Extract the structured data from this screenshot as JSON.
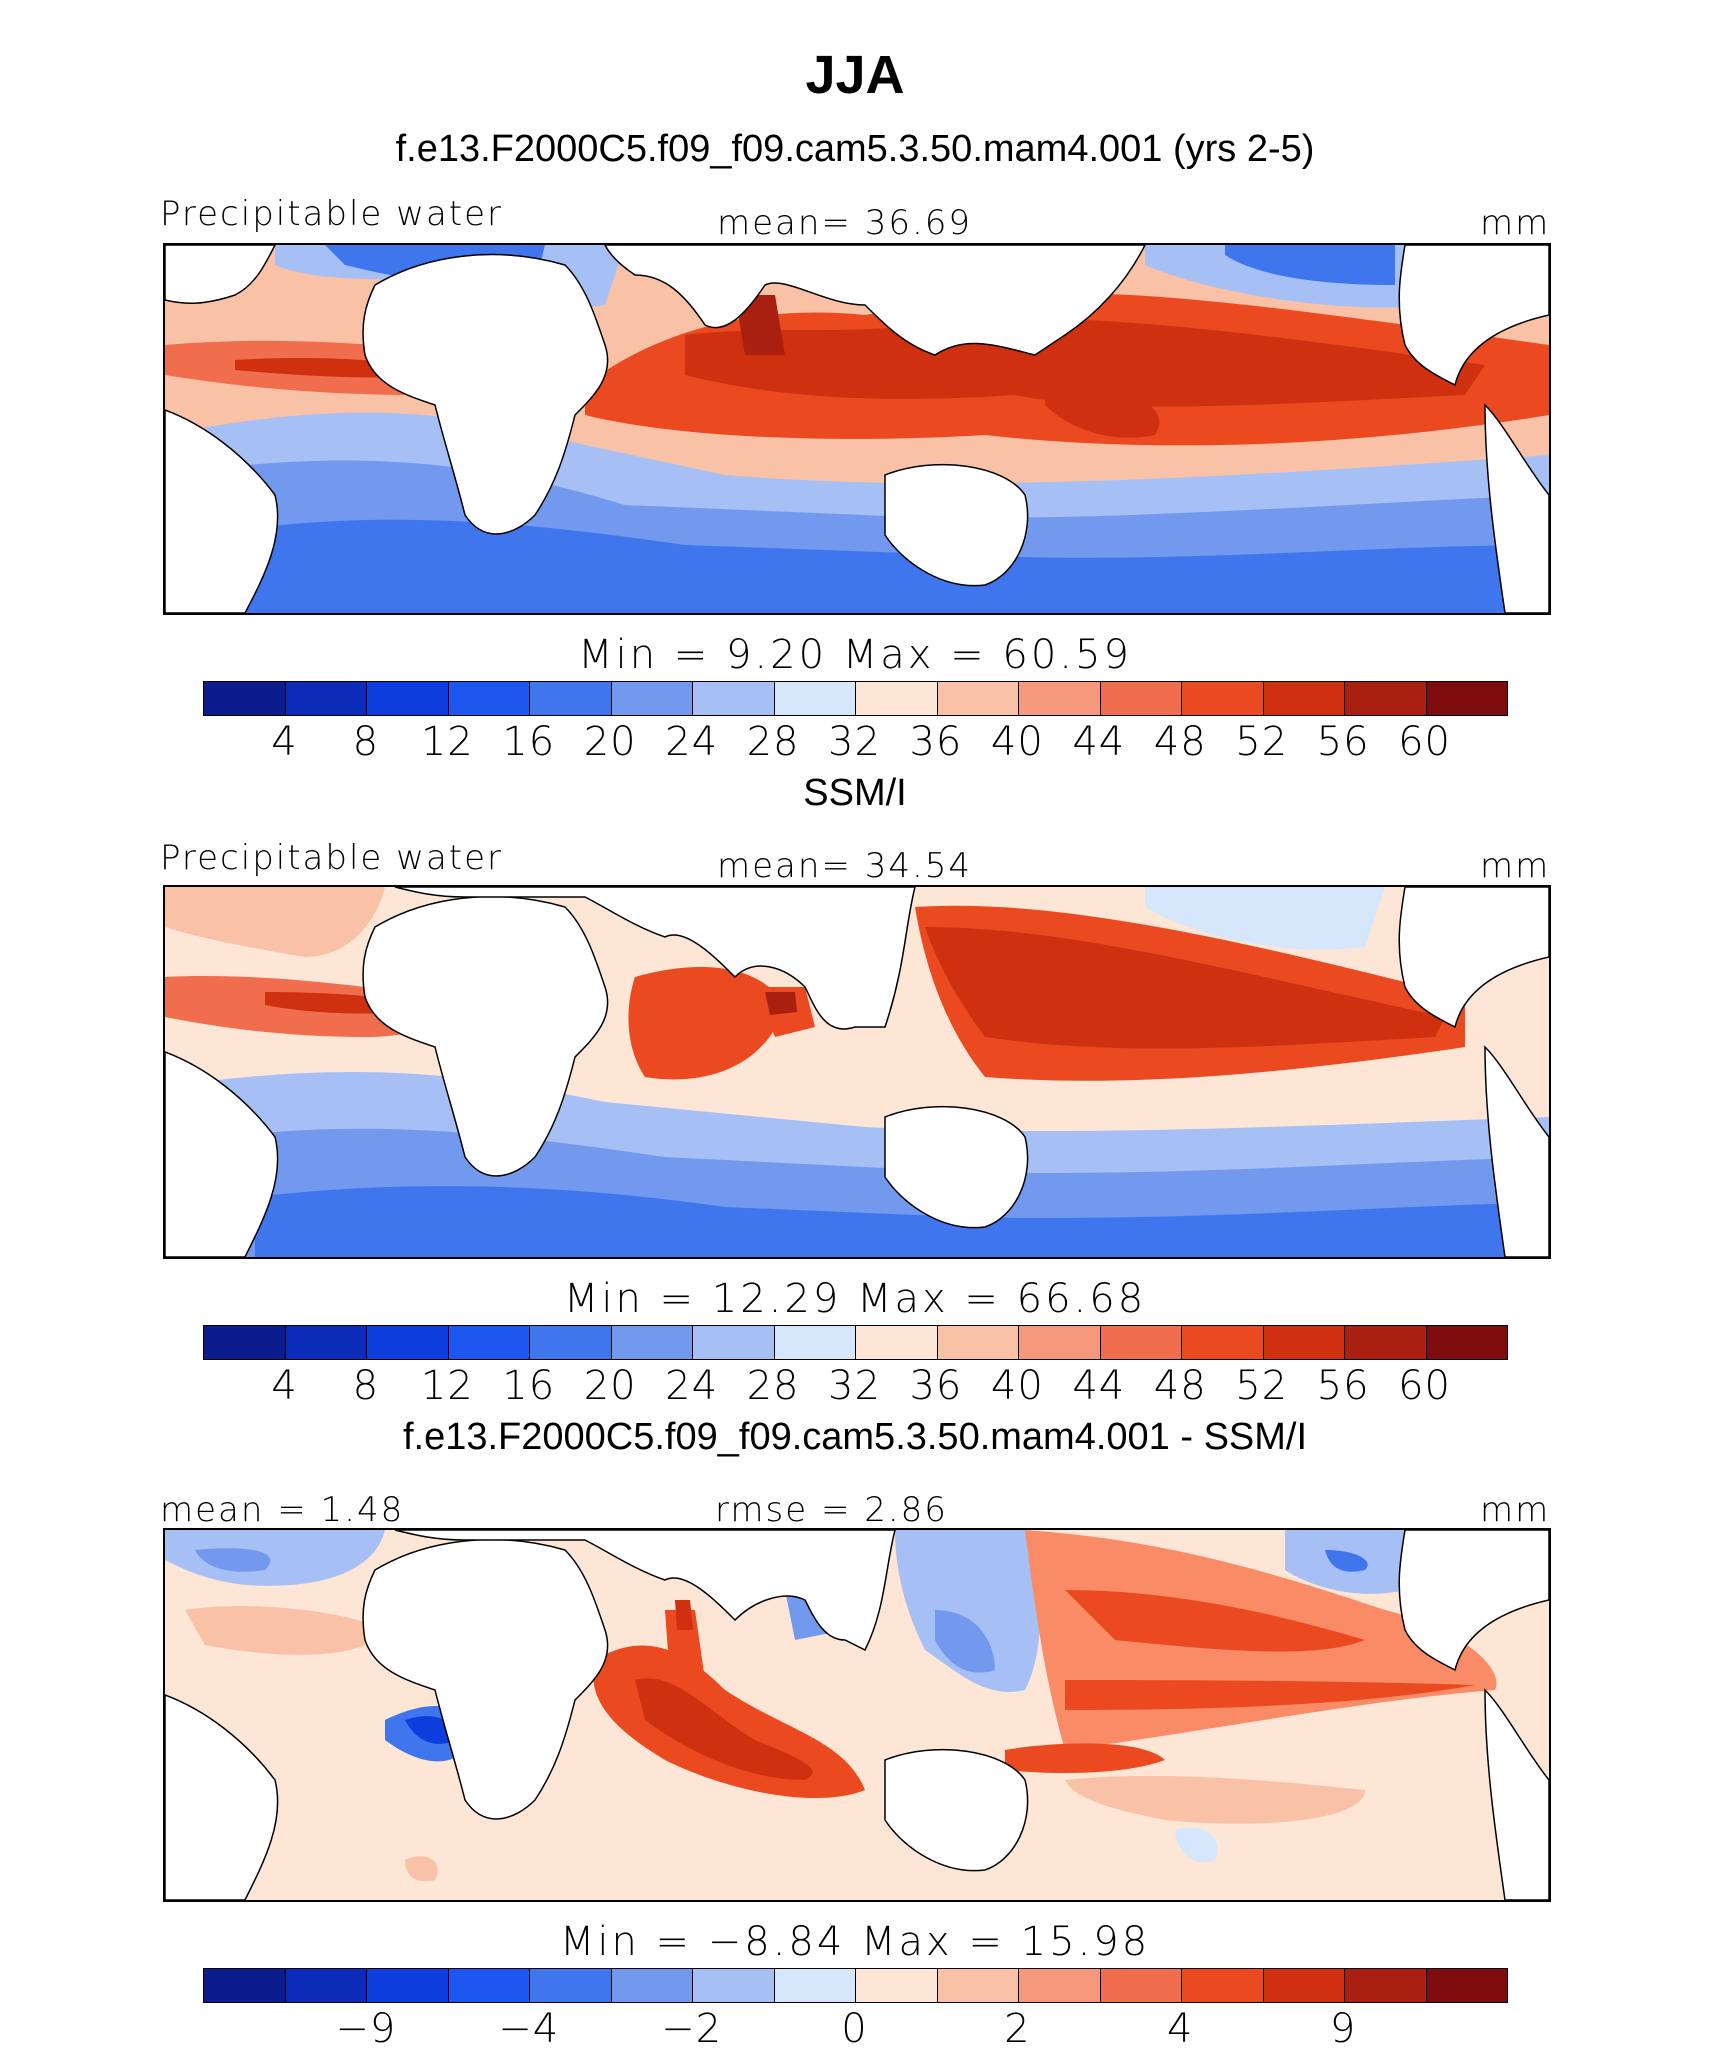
{
  "title": "JJA",
  "palette": {
    "main": [
      "#0c1c8e",
      "#0a2cb8",
      "#0d3ddc",
      "#1e56f0",
      "#3f76ee",
      "#7399ef",
      "#a6c0f5",
      "#d6e6fb",
      "#fde6d6",
      "#f9c2a7",
      "#f5987c",
      "#f06d4e",
      "#eb4a21",
      "#cf3010",
      "#aa2010",
      "#7e0c0c"
    ],
    "diff": [
      "#0c1c8e",
      "#0a2cb8",
      "#0d3ddc",
      "#1e56f0",
      "#3f76ee",
      "#7399ef",
      "#a6c0f5",
      "#d6e6fb",
      "#fde6d6",
      "#f9c2a7",
      "#f5987c",
      "#f06d4e",
      "#eb4a21",
      "#cf3010",
      "#aa2010",
      "#7e0c0c"
    ]
  },
  "panels": [
    {
      "subtitle": "f.e13.F2000C5.f09_f09.cam5.3.50.mam4.001 (yrs 2-5)",
      "left_label": "Precipitable water",
      "center_label": "mean=  36.69",
      "right_label": "mm",
      "minmax": "Min =   9.20 Max =  60.59",
      "ticks": [
        "4",
        "8",
        "12",
        "16",
        "20",
        "24",
        "28",
        "32",
        "36",
        "40",
        "44",
        "48",
        "52",
        "56",
        "60"
      ]
    },
    {
      "subtitle": "SSM/I",
      "left_label": "Precipitable water",
      "center_label": "mean=  34.54",
      "right_label": "mm",
      "minmax": "Min =  12.29 Max =  66.68",
      "ticks": [
        "4",
        "8",
        "12",
        "16",
        "20",
        "24",
        "28",
        "32",
        "36",
        "40",
        "44",
        "48",
        "52",
        "56",
        "60"
      ]
    },
    {
      "subtitle": "f.e13.F2000C5.f09_f09.cam5.3.50.mam4.001 - SSM/I",
      "left_label": "mean =  1.48",
      "center_label": "rmse =  2.86",
      "right_label": "mm",
      "minmax": "Min =  −8.84 Max =  15.98",
      "ticks": [
        "−9",
        "−4",
        "−2",
        "0",
        "2",
        "4",
        "9"
      ]
    }
  ]
}
